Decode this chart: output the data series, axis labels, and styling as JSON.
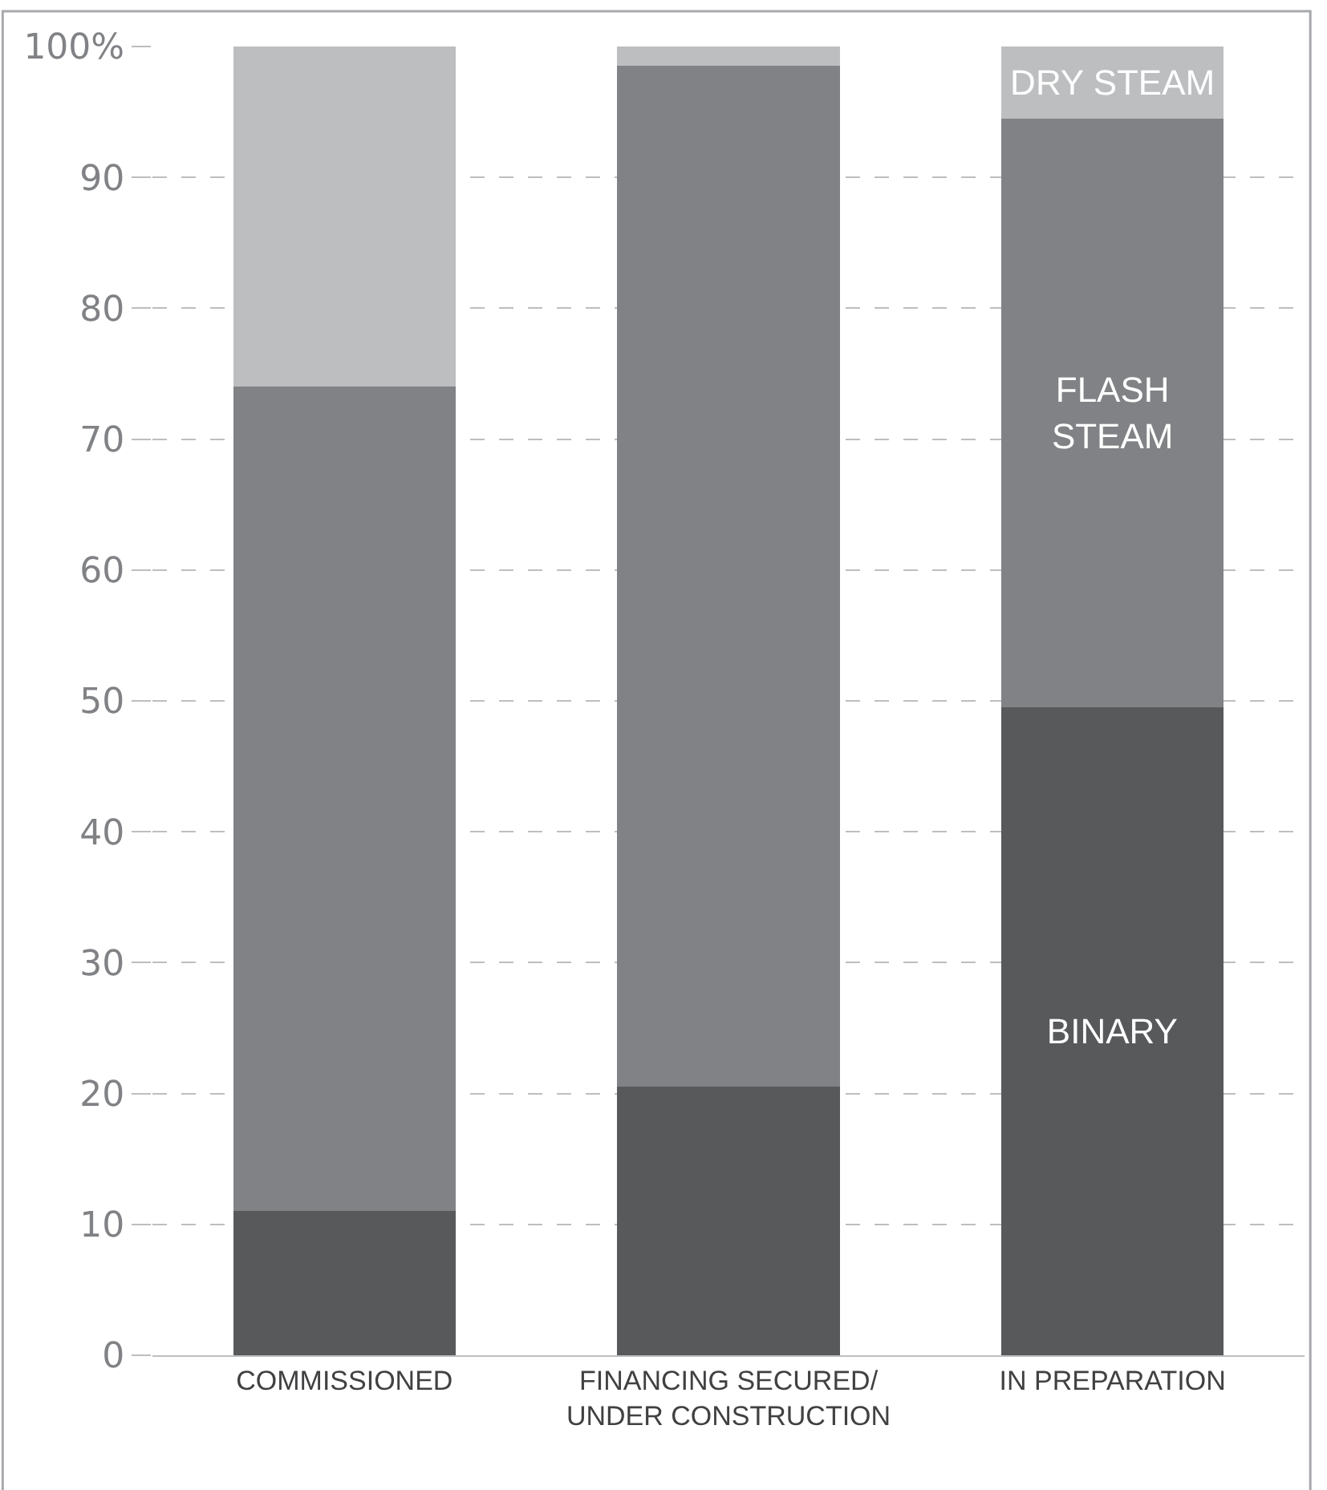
{
  "chart_data": {
    "type": "bar",
    "stacked": true,
    "categories": [
      "COMMISSIONED",
      "FINANCING SECURED/ UNDER CONSTRUCTION",
      "IN PREPARATION"
    ],
    "series": [
      {
        "name": "BINARY",
        "color": "#58595b",
        "values": [
          11,
          20.5,
          49.5
        ]
      },
      {
        "name": "FLASH STEAM",
        "color": "#808285",
        "values": [
          63,
          78,
          45
        ]
      },
      {
        "name": "DRY STEAM",
        "color": "#bcbec0",
        "values": [
          26,
          1.5,
          5.5
        ]
      }
    ],
    "ylim": [
      0,
      100
    ],
    "yticks": [
      0,
      10,
      20,
      30,
      40,
      50,
      60,
      70,
      80,
      90,
      {
        "value": 100,
        "label": "100%"
      }
    ],
    "grid": "y",
    "legend": false
  }
}
